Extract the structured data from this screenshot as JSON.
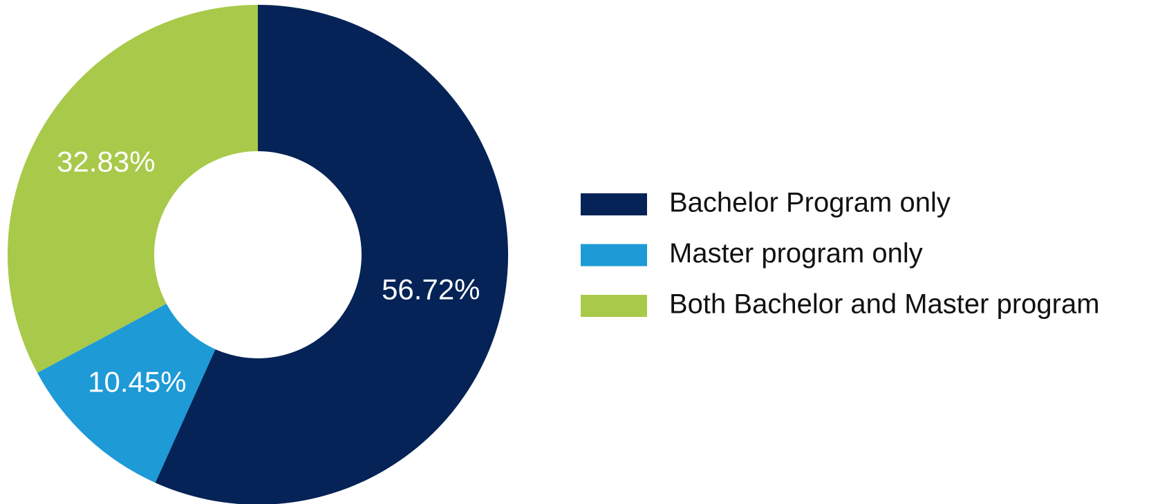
{
  "chart_data": {
    "type": "pie",
    "categories": [
      "Bachelor Program only",
      "Master program only",
      "Both Bachelor and Master program"
    ],
    "values": [
      56.72,
      10.45,
      32.83
    ],
    "value_labels": [
      "56.72%",
      "10.45%",
      "32.83%"
    ],
    "colors": [
      "#052356",
      "#1e9ad6",
      "#a8c94a"
    ],
    "legend": "right"
  }
}
